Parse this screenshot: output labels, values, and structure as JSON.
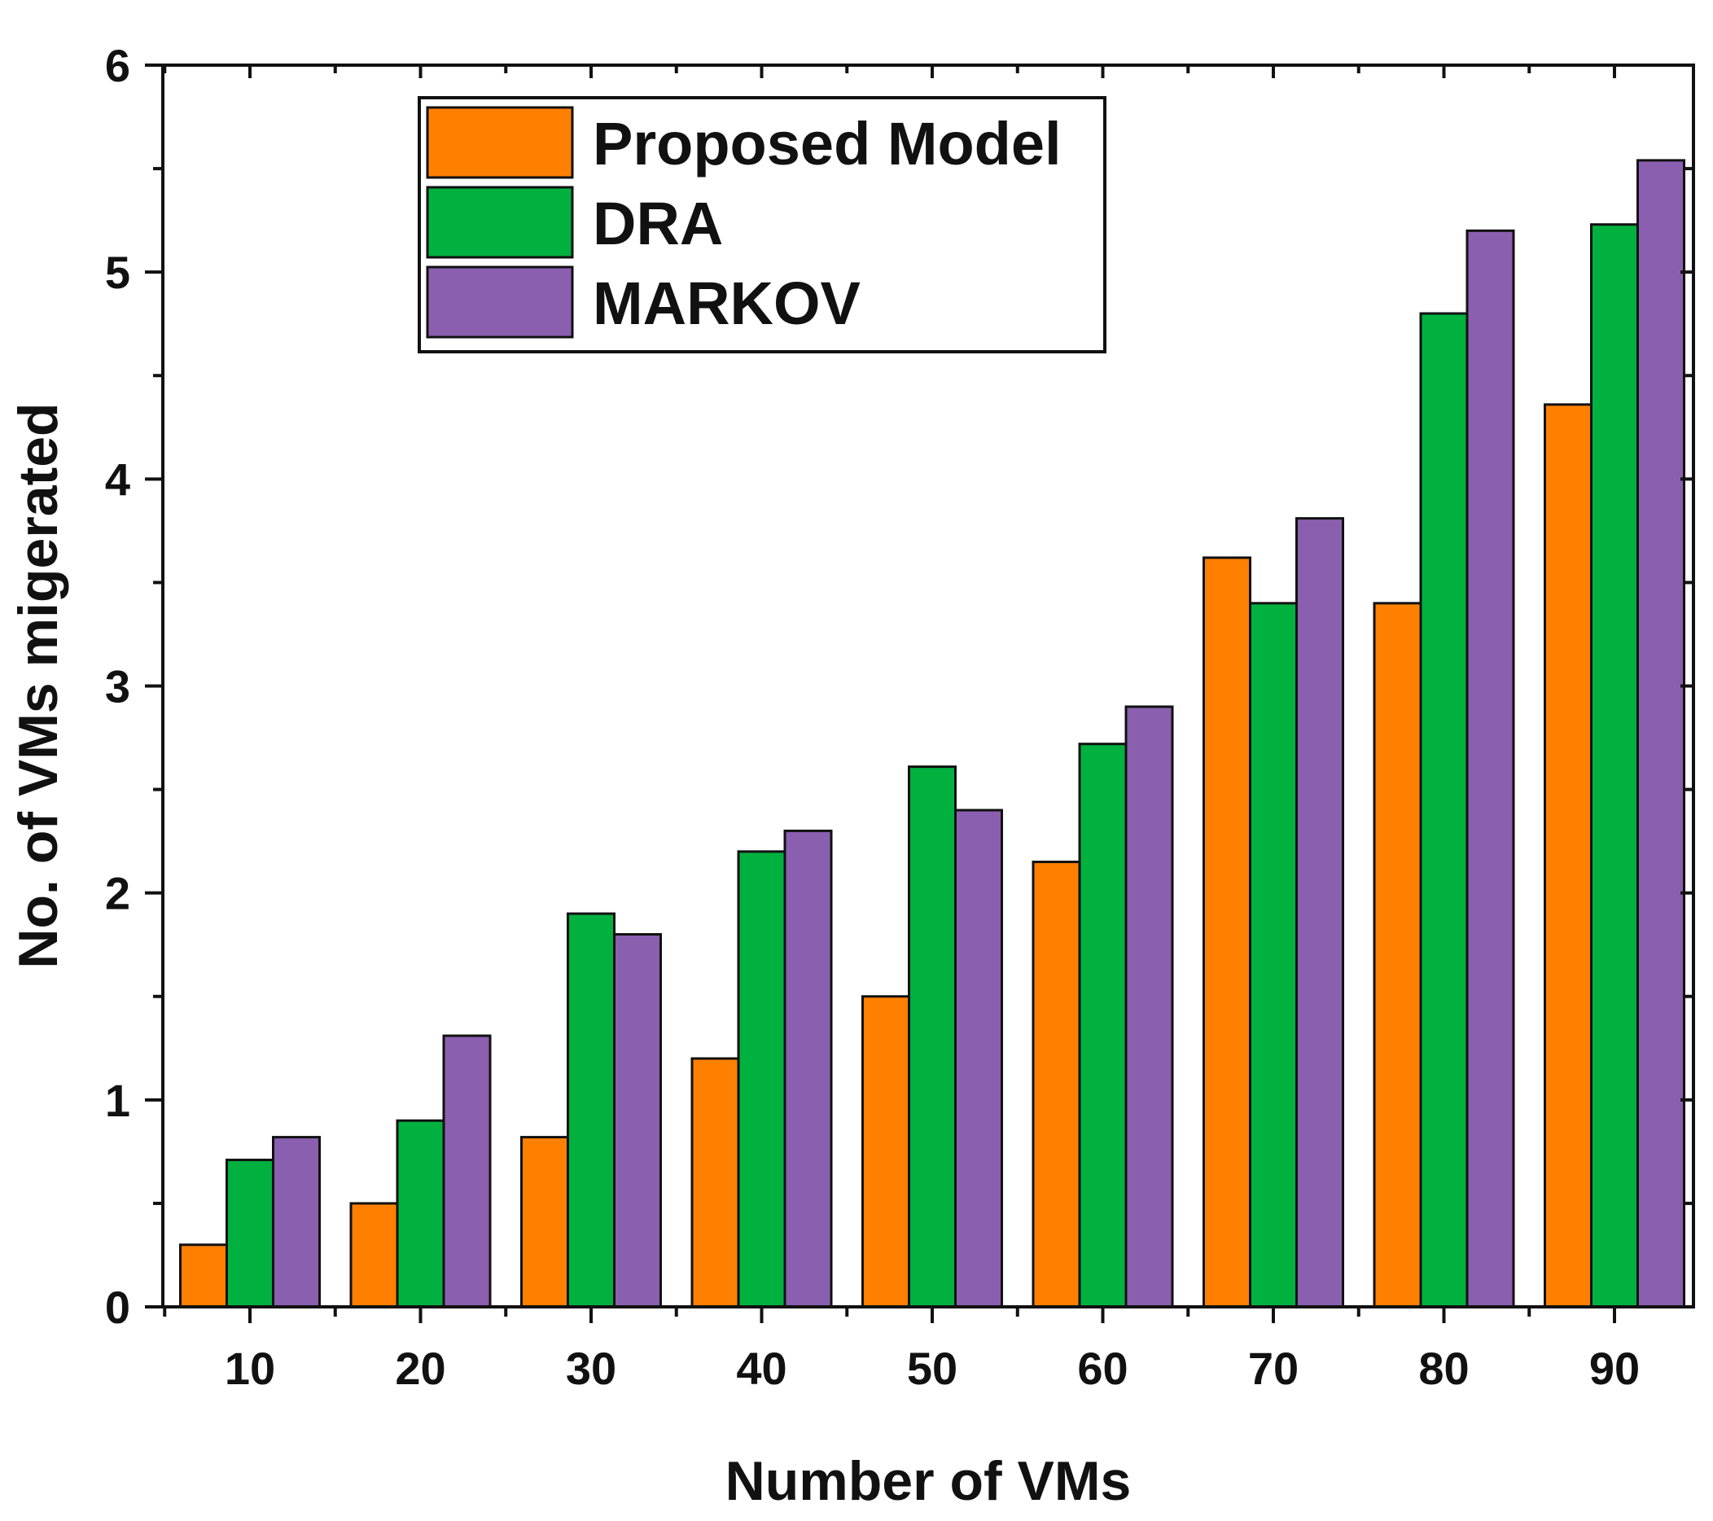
{
  "chart_data": {
    "type": "bar",
    "title": "",
    "xlabel": "Number of VMs",
    "ylabel": "No. of VMs migerated",
    "categories": [
      "10",
      "20",
      "30",
      "40",
      "50",
      "60",
      "70",
      "80",
      "90"
    ],
    "series": [
      {
        "name": "Proposed Model",
        "color": "#ff8000",
        "values": [
          0.3,
          0.5,
          0.82,
          1.2,
          1.5,
          2.15,
          3.62,
          3.4,
          4.36
        ]
      },
      {
        "name": "DRA",
        "color": "#00b140",
        "values": [
          0.71,
          0.9,
          1.9,
          2.2,
          2.61,
          2.72,
          3.4,
          4.8,
          5.23
        ]
      },
      {
        "name": "MARKOV",
        "color": "#8b5fb0",
        "values": [
          0.82,
          1.31,
          1.8,
          2.3,
          2.4,
          2.9,
          3.81,
          5.2,
          5.54
        ]
      }
    ],
    "ylim": [
      0,
      6
    ],
    "yticks": [
      0,
      1,
      2,
      3,
      4,
      5,
      6
    ],
    "legend_position": "top-left",
    "grid": false
  }
}
